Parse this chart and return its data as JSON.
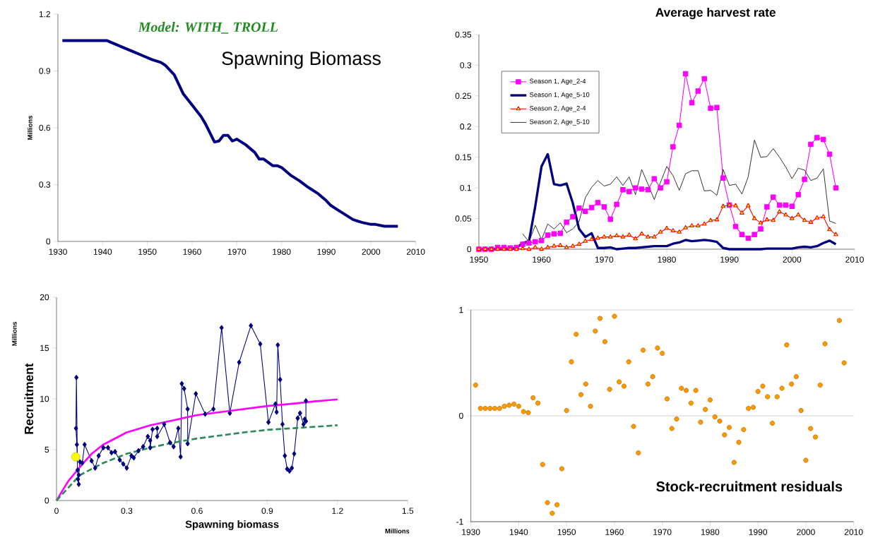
{
  "chart_data": [
    {
      "type": "line",
      "title": "Spawning Biomass",
      "ylabel": "Millions",
      "annotations": [
        "Model: WITH_ TROLL"
      ],
      "series": [
        {
          "color": "#000080",
          "x": [
            1931,
            1941,
            1943,
            1945,
            1947,
            1949,
            1951,
            1953,
            1954,
            1956,
            1958,
            1960,
            1962,
            1963,
            1965,
            1966,
            1967,
            1968,
            1969,
            1970,
            1972,
            1974,
            1975,
            1976,
            1978,
            1979,
            1980,
            1982,
            1984,
            1986,
            1988,
            1990,
            1991,
            1993,
            1994,
            1996,
            1998,
            2000,
            2001,
            2003,
            2006
          ],
          "values": [
            1.06,
            1.06,
            1.04,
            1.02,
            1.0,
            0.98,
            0.96,
            0.945,
            0.93,
            0.88,
            0.78,
            0.72,
            0.66,
            0.62,
            0.525,
            0.53,
            0.56,
            0.56,
            0.53,
            0.54,
            0.51,
            0.47,
            0.435,
            0.435,
            0.4,
            0.4,
            0.39,
            0.35,
            0.32,
            0.285,
            0.255,
            0.215,
            0.19,
            0.16,
            0.145,
            0.115,
            0.1,
            0.09,
            0.09,
            0.08,
            0.08
          ]
        }
      ],
      "xlim": [
        1930,
        2010
      ],
      "xticks": [
        1930,
        1940,
        1950,
        1960,
        1970,
        1980,
        1990,
        2000,
        2010
      ],
      "ylim": [
        0,
        1.2
      ],
      "yticks": [
        0,
        0.3,
        0.6,
        0.9,
        1.2
      ]
    },
    {
      "type": "line",
      "title": "Average harvest rate",
      "legend": "top left",
      "x": [
        1950,
        1951,
        1952,
        1953,
        1954,
        1955,
        1956,
        1957,
        1958,
        1959,
        1960,
        1961,
        1962,
        1963,
        1964,
        1965,
        1966,
        1967,
        1968,
        1969,
        1970,
        1971,
        1972,
        1973,
        1974,
        1975,
        1976,
        1977,
        1978,
        1979,
        1980,
        1981,
        1982,
        1983,
        1984,
        1985,
        1986,
        1987,
        1988,
        1989,
        1990,
        1991,
        1992,
        1993,
        1994,
        1995,
        1996,
        1997,
        1998,
        1999,
        2000,
        2001,
        2002,
        2003,
        2004,
        2005,
        2006,
        2007
      ],
      "series": [
        {
          "name": "Season 1, Age_2-4",
          "color": "#ff00ff",
          "marker": "square",
          "values": [
            0,
            0,
            0,
            0.003,
            0.003,
            0.002,
            0.003,
            0.008,
            0.01,
            0.012,
            0.014,
            0.023,
            0.025,
            0.026,
            0.044,
            0.053,
            0.067,
            0.062,
            0.068,
            0.076,
            0.069,
            0.049,
            0.073,
            0.097,
            0.094,
            0.1,
            0.098,
            0.097,
            0.115,
            0.1,
            0.11,
            0.167,
            0.202,
            0.286,
            0.239,
            0.258,
            0.278,
            0.23,
            0.231,
            0.116,
            0.072,
            0.037,
            0.024,
            0.018,
            0.024,
            0.033,
            0.069,
            0.085,
            0.072,
            0.072,
            0.07,
            0.089,
            0.114,
            0.171,
            0.182,
            0.179,
            0.155,
            0.1
          ]
        },
        {
          "name": "Season 1, Age_5-10",
          "color": "#000080",
          "values": [
            0,
            0,
            0,
            0,
            0,
            0,
            0.002,
            0.01,
            0.013,
            0.07,
            0.135,
            0.155,
            0.106,
            0.104,
            0.107,
            0.075,
            0.033,
            0.02,
            0.026,
            0.002,
            0.002,
            0.003,
            0,
            0.001,
            0.002,
            0.002,
            0.003,
            0.004,
            0.005,
            0.005,
            0.005,
            0.009,
            0.011,
            0.015,
            0.013,
            0.014,
            0.015,
            0.014,
            0.012,
            0.002,
            0,
            0,
            0,
            0,
            0,
            0,
            0.001,
            0.001,
            0.001,
            0.001,
            0.001,
            0.003,
            0.004,
            0.003,
            0.005,
            0.01,
            0.014,
            0.008
          ]
        },
        {
          "name": "Season 2, Age_2-4",
          "color": "#ff0000",
          "marker": "triangle",
          "values": [
            0,
            0,
            0,
            0,
            0,
            0,
            0,
            0.001,
            0,
            0.003,
            0,
            0.003,
            0.005,
            0.006,
            0.003,
            0.005,
            0.008,
            0.013,
            0.016,
            0.018,
            0.02,
            0.02,
            0.022,
            0.02,
            0.023,
            0.017,
            0.025,
            0.02,
            0.02,
            0.028,
            0.034,
            0.03,
            0.028,
            0.035,
            0.038,
            0.038,
            0.041,
            0.047,
            0.048,
            0.07,
            0.072,
            0.071,
            0.059,
            0.071,
            0.05,
            0.043,
            0.048,
            0.047,
            0.061,
            0.056,
            0.05,
            0.056,
            0.047,
            0.044,
            0.051,
            0.053,
            0.032,
            0.024
          ]
        },
        {
          "name": "Season 2, Age_5-10",
          "color": "#000000",
          "values": [
            null,
            null,
            null,
            null,
            null,
            null,
            null,
            0.025,
            0.012,
            0.039,
            0.016,
            0.041,
            0.033,
            0.043,
            0.027,
            0.033,
            0.045,
            0.084,
            0.101,
            0.112,
            0.103,
            0.106,
            0.118,
            0.104,
            0.118,
            0.089,
            0.13,
            0.106,
            0.081,
            0.109,
            0.135,
            0.12,
            0.096,
            0.123,
            0.128,
            0.128,
            0.095,
            0.096,
            0.088,
            0.13,
            0.104,
            0.106,
            0.09,
            0.118,
            0.178,
            0.15,
            0.151,
            0.164,
            0.15,
            0.134,
            0.115,
            0.132,
            0.129,
            0.112,
            0.116,
            0.131,
            0.046,
            0.042
          ]
        }
      ],
      "xlim": [
        1950,
        2010
      ],
      "xticks": [
        1950,
        1960,
        1970,
        1980,
        1990,
        2000,
        2010
      ],
      "ylim": [
        0,
        0.35
      ],
      "yticks": [
        0,
        0.05,
        0.1,
        0.15,
        0.2,
        0.25,
        0.3,
        0.35
      ]
    },
    {
      "type": "line",
      "xlabel": "Spawning biomass",
      "ylabel": "Recruitment",
      "annotations": [
        "Millions",
        "Millions"
      ],
      "series": [
        {
          "color": "#000080",
          "marker": "diamond",
          "x": [
            1.065,
            1.065,
            1.06,
            1.055,
            1.04,
            1.03,
            1.015,
            1.005,
            0.995,
            0.985,
            0.975,
            0.965,
            0.955,
            0.945,
            0.94,
            0.935,
            0.905,
            0.87,
            0.83,
            0.78,
            0.74,
            0.705,
            0.67,
            0.635,
            0.595,
            0.56,
            0.56,
            0.545,
            0.535,
            0.53,
            0.52,
            0.5,
            0.485,
            0.46,
            0.43,
            0.43,
            0.41,
            0.4,
            0.4,
            0.39,
            0.37,
            0.35,
            0.33,
            0.32,
            0.3,
            0.285,
            0.27,
            0.25,
            0.235,
            0.22,
            0.2,
            0.18,
            0.165,
            0.15,
            0.12,
            0.11,
            0.1,
            0.095,
            0.095,
            0.092,
            0.09,
            0.087,
            0.083,
            0.085,
            0.089
          ],
          "values": [
            9.8,
            7.8,
            8.0,
            7.5,
            8.6,
            8.1,
            4.6,
            3.2,
            2.9,
            3.1,
            4.4,
            7.5,
            11.9,
            15.3,
            8.7,
            9.5,
            7.7,
            15.4,
            17.2,
            13.6,
            8.6,
            17.0,
            9.0,
            8.5,
            10.5,
            5.6,
            9.0,
            11.0,
            11.5,
            4.3,
            7.1,
            5.3,
            5.7,
            7.5,
            6.3,
            7.1,
            7.0,
            5.2,
            5.9,
            6.3,
            5.3,
            4.9,
            4.2,
            4.4,
            3.2,
            3.6,
            4.0,
            4.8,
            4.7,
            5.2,
            5.2,
            4.4,
            3.2,
            3.9,
            5.5,
            3.7,
            3.8,
            2.5,
            1.6,
            2.1,
            3.0,
            5.5,
            7.1,
            12.1,
            4.2
          ]
        },
        {
          "type": "scatter",
          "color": "#ffff00",
          "marker": "circle",
          "x": [
            0.082
          ],
          "values": [
            4.3
          ]
        },
        {
          "color": "#ff00ff",
          "x": [
            0,
            0.05,
            0.1,
            0.15,
            0.2,
            0.3,
            0.4,
            0.5,
            0.6,
            0.7,
            0.8,
            0.9,
            1.0,
            1.1,
            1.2
          ],
          "values": [
            0,
            1.9,
            3.3,
            4.6,
            5.5,
            6.7,
            7.4,
            7.9,
            8.4,
            8.7,
            9.0,
            9.3,
            9.5,
            9.75,
            9.95
          ]
        },
        {
          "color": "#2e8b57",
          "line_style": "dashed",
          "x": [
            0,
            0.1,
            0.2,
            0.3,
            0.4,
            0.5,
            0.6,
            0.7,
            0.8,
            0.9,
            1.0,
            1.1,
            1.2
          ],
          "values": [
            0,
            2.5,
            3.7,
            4.6,
            5.2,
            5.7,
            6.1,
            6.4,
            6.7,
            6.95,
            7.1,
            7.25,
            7.4
          ]
        }
      ],
      "xlim": [
        0,
        1.5
      ],
      "xticks": [
        0,
        0.3,
        0.6,
        0.9,
        1.2,
        1.5
      ],
      "ylim": [
        0,
        20
      ],
      "yticks": [
        0,
        5,
        10,
        15,
        20
      ]
    },
    {
      "type": "scatter",
      "title": "Stock-recruitment residuals",
      "grid": "y",
      "x": [
        1931,
        1932,
        1933,
        1934,
        1935,
        1936,
        1937,
        1938,
        1939,
        1940,
        1941,
        1942,
        1943,
        1944,
        1945,
        1946,
        1947,
        1948,
        1949,
        1950,
        1951,
        1952,
        1953,
        1954,
        1955,
        1956,
        1957,
        1958,
        1959,
        1960,
        1961,
        1962,
        1963,
        1964,
        1965,
        1966,
        1967,
        1968,
        1969,
        1970,
        1971,
        1972,
        1973,
        1974,
        1975,
        1976,
        1977,
        1978,
        1979,
        1980,
        1981,
        1982,
        1983,
        1984,
        1985,
        1986,
        1987,
        1988,
        1989,
        1990,
        1991,
        1992,
        1993,
        1994,
        1995,
        1996,
        1997,
        1998,
        1999,
        2000,
        2001,
        2002,
        2003,
        2004,
        2007,
        2008
      ],
      "series": [
        {
          "color": "#ff9900",
          "marker": "circle",
          "values": [
            0.29,
            0.07,
            0.07,
            0.07,
            0.07,
            0.07,
            0.09,
            0.1,
            0.11,
            0.09,
            0.04,
            0.03,
            0.17,
            0.12,
            -0.46,
            -0.82,
            -0.92,
            -0.84,
            -0.5,
            0.05,
            0.51,
            0.77,
            0.2,
            0.3,
            0.09,
            0.8,
            0.92,
            0.7,
            0.25,
            0.94,
            0.32,
            0.28,
            0.51,
            -0.1,
            -0.35,
            0.62,
            0.3,
            0.37,
            0.64,
            0.59,
            0.16,
            -0.12,
            -0.03,
            0.26,
            0.24,
            0.12,
            0.24,
            -0.06,
            0.06,
            0.15,
            -0.01,
            -0.05,
            -0.18,
            -0.11,
            -0.44,
            -0.25,
            -0.13,
            0.07,
            0.08,
            0.23,
            0.28,
            0.18,
            -0.07,
            0.18,
            0.26,
            0.67,
            0.3,
            0.37,
            0.05,
            -0.42,
            -0.12,
            -0.2,
            0.29,
            0.68,
            0.9,
            0.5
          ]
        }
      ],
      "xlim": [
        1930,
        2010
      ],
      "xticks": [
        1930,
        1940,
        1950,
        1960,
        1970,
        1980,
        1990,
        2000,
        2010
      ],
      "ylim": [
        -1,
        1
      ],
      "yticks": [
        -1,
        0,
        1
      ]
    }
  ]
}
